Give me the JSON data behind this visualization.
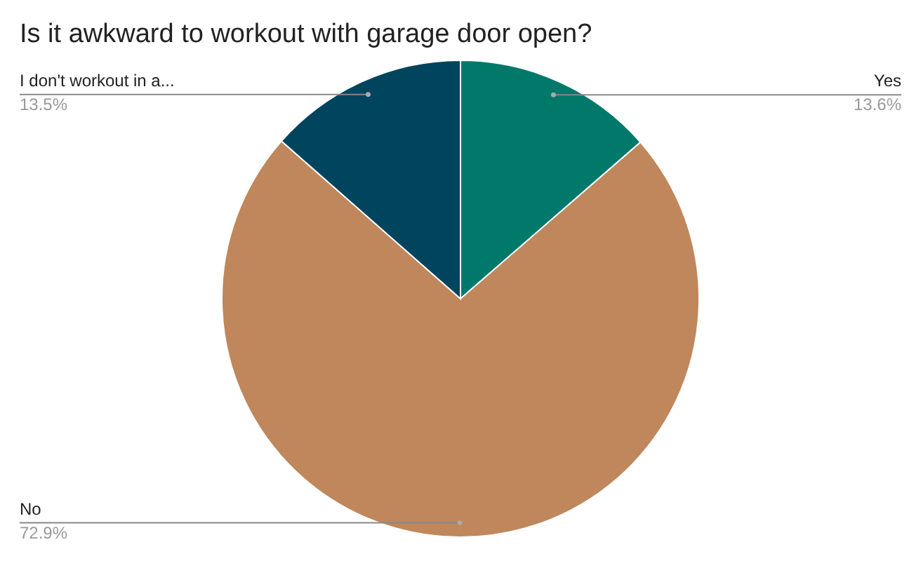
{
  "chart_data": {
    "type": "pie",
    "title": "Is it awkward to workout with garage door open?",
    "categories": [
      "Yes",
      "No",
      "I don't workout in a..."
    ],
    "values": [
      13.6,
      72.9,
      13.5
    ],
    "colors": [
      "#00796b",
      "#bf875b",
      "#00445e"
    ],
    "value_labels": [
      "13.6%",
      "72.9%",
      "13.5%"
    ],
    "legend": false
  }
}
